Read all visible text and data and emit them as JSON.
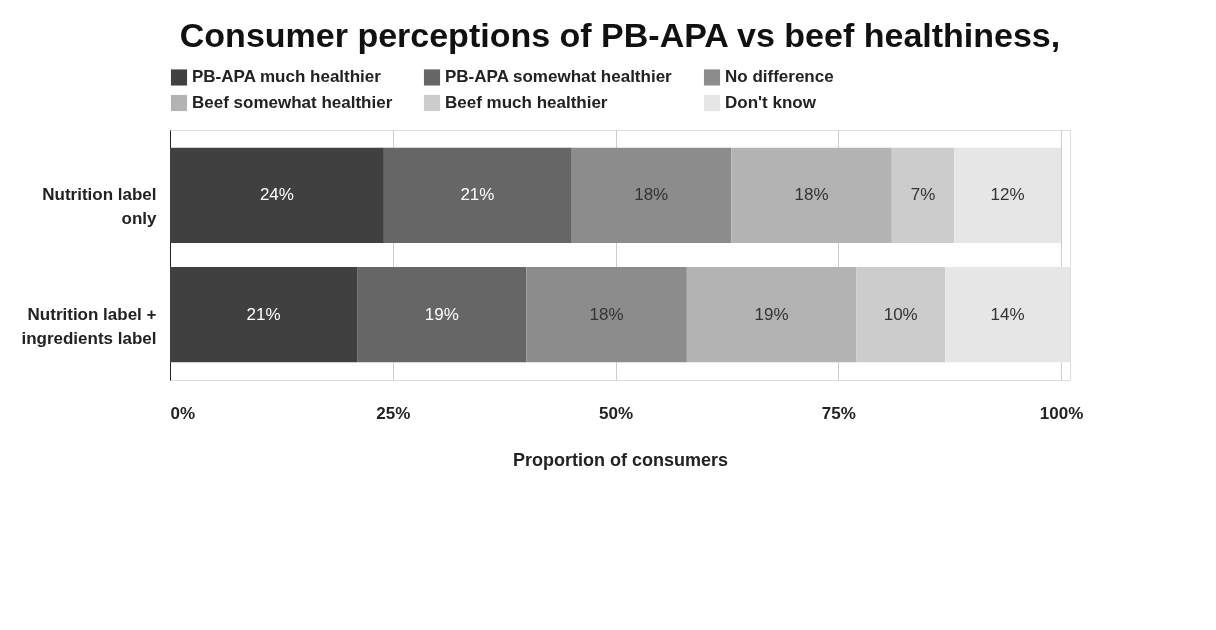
{
  "chart_data": {
    "type": "bar",
    "orientation": "horizontal",
    "stacked": true,
    "title": "Consumer perceptions of PB-APA vs beef healthiness,",
    "xlabel": "Proportion of consumers",
    "categories": [
      "Nutrition label\nonly",
      "Nutrition label +\ningredients label"
    ],
    "series": [
      {
        "name": "PB-APA much healthier",
        "color": "#404040",
        "values": [
          24,
          21
        ],
        "value_labels": [
          "24%",
          "21%"
        ]
      },
      {
        "name": "PB-APA somewhat healthier",
        "color": "#666666",
        "values": [
          21,
          19
        ],
        "value_labels": [
          "21%",
          "19%"
        ]
      },
      {
        "name": "No difference",
        "color": "#8c8c8c",
        "values": [
          18,
          18
        ],
        "value_labels": [
          "18%",
          "18%"
        ]
      },
      {
        "name": "Beef somewhat healthier",
        "color": "#b3b3b3",
        "values": [
          18,
          19
        ],
        "value_labels": [
          "18%",
          "19%"
        ]
      },
      {
        "name": "Beef much healthier",
        "color": "#cccccc",
        "values": [
          7,
          10
        ],
        "value_labels": [
          "7%",
          "10%"
        ]
      },
      {
        "name": "Don't know",
        "color": "#e6e6e6",
        "values": [
          12,
          14
        ],
        "value_labels": [
          "12%",
          "14%"
        ]
      }
    ],
    "xlim": [
      0,
      101
    ],
    "xticks": [
      {
        "value": 0,
        "label": "0%"
      },
      {
        "value": 25,
        "label": "25%"
      },
      {
        "value": 50,
        "label": "50%"
      },
      {
        "value": 75,
        "label": "75%"
      },
      {
        "value": 100,
        "label": "100%"
      }
    ],
    "grid": "x",
    "legend": "top"
  }
}
